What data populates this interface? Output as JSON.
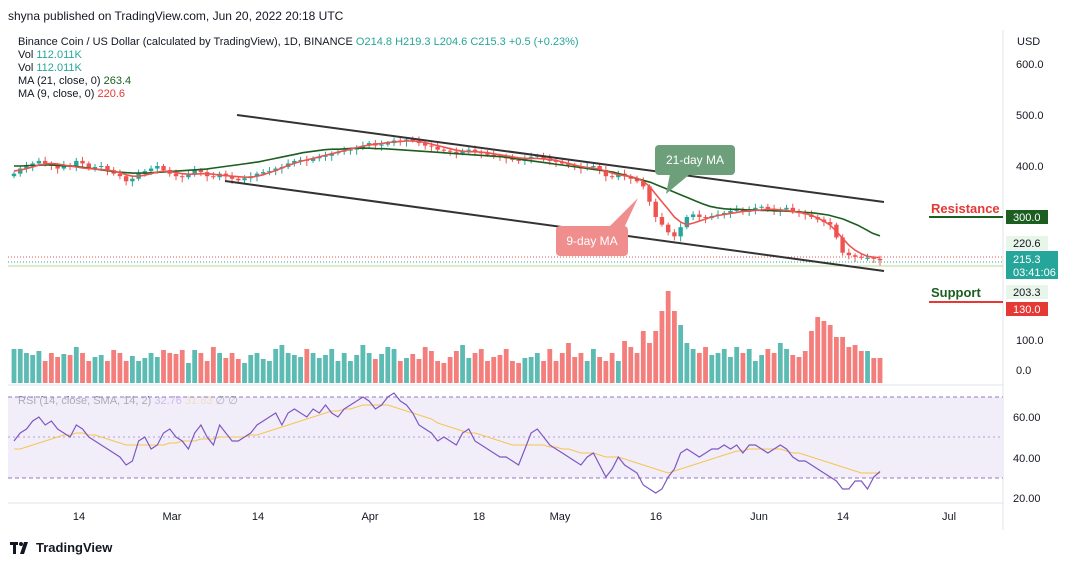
{
  "header": {
    "published": "shyna published on TradingView.com, Jun 20, 2022 20:18 UTC"
  },
  "legend": {
    "symbol": "Binance Coin / US Dollar (calculated by TradingView), 1D, BINANCE",
    "open": "O214.8",
    "high": "H219.3",
    "low": "L204.6",
    "close": "C215.3",
    "change": "+0.5 (+0.23%)",
    "vol1_label": "Vol",
    "vol1_value": "112.011K",
    "vol2_label": "Vol",
    "vol2_value": "112.011K",
    "ma21_label": "MA (21, close, 0)",
    "ma21_value": "263.4",
    "ma9_label": "MA (9, close, 0)",
    "ma9_value": "220.6"
  },
  "rsi_legend": {
    "label": "RSI (14, close, SMA, 14, 2)",
    "rsi_value": "32.76",
    "sma_value": "31.83",
    "extra1": "∅",
    "extra2": "∅"
  },
  "currency": "USD",
  "annotations": {
    "ma21_callout": "21-day MA",
    "ma9_callout": "9-day MA",
    "resistance": "Resistance",
    "support": "Support"
  },
  "price_badges": {
    "resistance_level": "300.0",
    "ma9_badge": "220.6",
    "close_badge": "215.3",
    "countdown": "03:41:06",
    "ma_other_badge": "203.3",
    "support_level": "130.0"
  },
  "footer": {
    "brand": "TradingView"
  },
  "colors": {
    "up": "#26a69a",
    "down": "#ef5350",
    "ma21": "#1b5e20",
    "ma9": "#ef5350",
    "rsi": "#7e57c2",
    "rsi_sma": "#f5c451",
    "channel": "#333333"
  },
  "chart_data": {
    "type": "candlestick",
    "x_ticks": [
      "14",
      "Mar",
      "14",
      "Apr",
      "18",
      "May",
      "16",
      "Jun",
      "14",
      "Jul"
    ],
    "price_axis": {
      "ticks": [
        "600.0",
        "500.0",
        "400.0",
        "0.0"
      ]
    },
    "volume_axis_tick": "100.0",
    "rsi_axis": {
      "ticks": [
        "60.00",
        "40.00",
        "20.00"
      ],
      "bands": [
        30,
        70
      ]
    },
    "resistance": 300,
    "support": 130,
    "closes": [
      385,
      395,
      400,
      405,
      410,
      405,
      400,
      395,
      402,
      398,
      410,
      405,
      395,
      398,
      400,
      392,
      385,
      380,
      370,
      375,
      385,
      390,
      395,
      400,
      392,
      385,
      380,
      378,
      385,
      392,
      388,
      380,
      378,
      385,
      380,
      375,
      372,
      376,
      380,
      385,
      388,
      390,
      395,
      398,
      405,
      410,
      412,
      410,
      415,
      418,
      420,
      425,
      428,
      430,
      432,
      435,
      440,
      445,
      440,
      442,
      445,
      450,
      448,
      452,
      450,
      445,
      440,
      438,
      432,
      430,
      428,
      425,
      430,
      432,
      428,
      425,
      422,
      420,
      418,
      415,
      412,
      410,
      415,
      418,
      420,
      415,
      410,
      408,
      405,
      402,
      400,
      395,
      398,
      400,
      392,
      380,
      378,
      385,
      380,
      375,
      370,
      360,
      330,
      300,
      285,
      270,
      262,
      280,
      300,
      305,
      300,
      298,
      302,
      305,
      308,
      312,
      315,
      310,
      315,
      318,
      320,
      316,
      312,
      315,
      318,
      312,
      308,
      305,
      300,
      295,
      290,
      285,
      260,
      230,
      225,
      222,
      220,
      220,
      218,
      215
    ],
    "ma21": [
      400,
      400,
      401,
      401,
      402,
      402,
      401,
      400,
      400,
      398,
      396,
      394,
      392,
      390,
      388,
      387,
      386,
      386,
      386,
      387,
      388,
      389,
      390,
      391,
      392,
      393,
      394,
      396,
      398,
      400,
      402,
      404,
      406,
      408,
      411,
      414,
      417,
      420,
      423,
      426,
      428,
      430,
      432,
      433,
      433,
      434,
      435,
      435,
      435,
      434,
      434,
      433,
      432,
      431,
      430,
      429,
      428,
      427,
      426,
      425,
      424,
      423,
      422,
      421,
      420,
      419,
      418,
      416,
      414,
      412,
      410,
      408,
      406,
      404,
      402,
      400,
      398,
      396,
      394,
      392,
      390,
      388,
      384,
      380,
      376,
      372,
      368,
      362,
      356,
      350,
      344,
      338,
      332,
      326,
      321,
      318,
      316,
      315,
      315,
      314,
      314,
      313,
      313,
      312,
      312,
      311,
      310,
      309,
      308,
      306,
      304,
      300,
      296,
      290,
      284,
      276,
      268,
      263
    ],
    "ma9": [
      390,
      392,
      395,
      398,
      402,
      404,
      405,
      404,
      402,
      400,
      398,
      396,
      395,
      394,
      393,
      392,
      390,
      387,
      383,
      380,
      380,
      382,
      385,
      388,
      390,
      389,
      387,
      385,
      384,
      384,
      385,
      385,
      384,
      382,
      381,
      380,
      379,
      378,
      378,
      380,
      383,
      387,
      391,
      396,
      401,
      405,
      409,
      412,
      415,
      418,
      421,
      424,
      427,
      430,
      433,
      436,
      439,
      441,
      443,
      444,
      446,
      447,
      448,
      449,
      449,
      448,
      446,
      443,
      440,
      437,
      434,
      431,
      429,
      428,
      428,
      427,
      426,
      424,
      422,
      420,
      418,
      416,
      415,
      415,
      415,
      414,
      413,
      411,
      408,
      405,
      402,
      399,
      397,
      396,
      394,
      390,
      386,
      383,
      381,
      379,
      376,
      370,
      360,
      345,
      330,
      315,
      300,
      290,
      285,
      288,
      292,
      296,
      300,
      303,
      305,
      307,
      309,
      311,
      312,
      313,
      314,
      315,
      315,
      314,
      313,
      311,
      309,
      307,
      303,
      298,
      292,
      284,
      272,
      258,
      245,
      235,
      228,
      223,
      221,
      220.6
    ],
    "volume": [
      0.34,
      0.34,
      0.3,
      0.28,
      0.32,
      0.22,
      0.3,
      0.26,
      0.29,
      0.28,
      0.36,
      0.3,
      0.22,
      0.26,
      0.28,
      0.22,
      0.33,
      0.3,
      0.22,
      0.27,
      0.22,
      0.25,
      0.3,
      0.26,
      0.33,
      0.3,
      0.29,
      0.33,
      0.2,
      0.33,
      0.3,
      0.22,
      0.36,
      0.3,
      0.25,
      0.3,
      0.24,
      0.2,
      0.28,
      0.3,
      0.24,
      0.22,
      0.34,
      0.38,
      0.3,
      0.28,
      0.26,
      0.34,
      0.3,
      0.25,
      0.28,
      0.34,
      0.22,
      0.3,
      0.22,
      0.28,
      0.38,
      0.3,
      0.24,
      0.29,
      0.36,
      0.34,
      0.22,
      0.25,
      0.29,
      0.24,
      0.36,
      0.32,
      0.22,
      0.2,
      0.26,
      0.32,
      0.38,
      0.25,
      0.3,
      0.34,
      0.22,
      0.26,
      0.28,
      0.34,
      0.22,
      0.2,
      0.25,
      0.26,
      0.3,
      0.22,
      0.34,
      0.22,
      0.3,
      0.4,
      0.26,
      0.3,
      0.22,
      0.34,
      0.26,
      0.22,
      0.3,
      0.22,
      0.42,
      0.36,
      0.3,
      0.52,
      0.4,
      0.52,
      0.72,
      0.92,
      0.72,
      0.58,
      0.4,
      0.34,
      0.3,
      0.36,
      0.28,
      0.3,
      0.34,
      0.26,
      0.36,
      0.3,
      0.34,
      0.22,
      0.28,
      0.34,
      0.3,
      0.4,
      0.34,
      0.28,
      0.26,
      0.32,
      0.52,
      0.66,
      0.62,
      0.58,
      0.46,
      0.46,
      0.36,
      0.38,
      0.32,
      0.32
    ],
    "rsi": [
      48,
      52,
      54,
      58,
      60,
      56,
      58,
      54,
      52,
      50,
      56,
      54,
      50,
      48,
      46,
      44,
      42,
      40,
      36,
      38,
      48,
      50,
      44,
      46,
      52,
      54,
      50,
      48,
      44,
      52,
      56,
      50,
      46,
      56,
      52,
      48,
      48,
      50,
      52,
      56,
      58,
      60,
      62,
      56,
      62,
      64,
      62,
      60,
      64,
      62,
      66,
      62,
      60,
      64,
      66,
      68,
      70,
      68,
      64,
      66,
      70,
      72,
      68,
      66,
      62,
      56,
      54,
      52,
      48,
      50,
      48,
      46,
      52,
      54,
      48,
      46,
      44,
      42,
      40,
      40,
      38,
      36,
      44,
      52,
      54,
      50,
      46,
      44,
      42,
      40,
      38,
      36,
      40,
      42,
      36,
      30,
      34,
      40,
      36,
      34,
      32,
      26,
      24,
      22,
      24,
      30,
      34,
      42,
      44,
      42,
      40,
      42,
      44,
      44,
      46,
      44,
      46,
      42,
      46,
      46,
      44,
      42,
      44,
      46,
      44,
      40,
      38,
      38,
      36,
      34,
      32,
      30,
      28,
      24,
      24,
      28,
      28,
      24,
      30,
      32.76
    ],
    "rsi_sma": [
      44,
      44,
      45,
      46,
      47,
      48,
      49,
      50,
      51,
      51,
      52,
      52,
      51,
      51,
      50,
      49,
      48,
      47,
      46,
      46,
      46,
      46,
      46,
      46,
      46,
      47,
      47,
      48,
      48,
      48,
      49,
      49,
      49,
      50,
      50,
      50,
      50,
      50,
      51,
      51,
      52,
      53,
      54,
      55,
      56,
      57,
      58,
      59,
      60,
      61,
      62,
      63,
      63,
      64,
      64,
      65,
      66,
      66,
      66,
      66,
      66,
      65,
      64,
      63,
      62,
      61,
      60,
      59,
      57,
      56,
      55,
      54,
      53,
      52,
      52,
      51,
      50,
      49,
      48,
      47,
      46,
      46,
      46,
      46,
      46,
      46,
      45,
      45,
      44,
      44,
      43,
      42,
      42,
      42,
      41,
      40,
      40,
      40,
      39,
      38,
      37,
      36,
      35,
      34,
      33,
      32,
      33,
      34,
      35,
      36,
      37,
      38,
      39,
      40,
      41,
      42,
      43,
      43,
      44,
      44,
      44,
      44,
      44,
      44,
      43,
      42,
      42,
      41,
      40,
      39,
      38,
      37,
      36,
      35,
      34,
      33,
      32,
      32,
      32,
      31.83
    ]
  }
}
